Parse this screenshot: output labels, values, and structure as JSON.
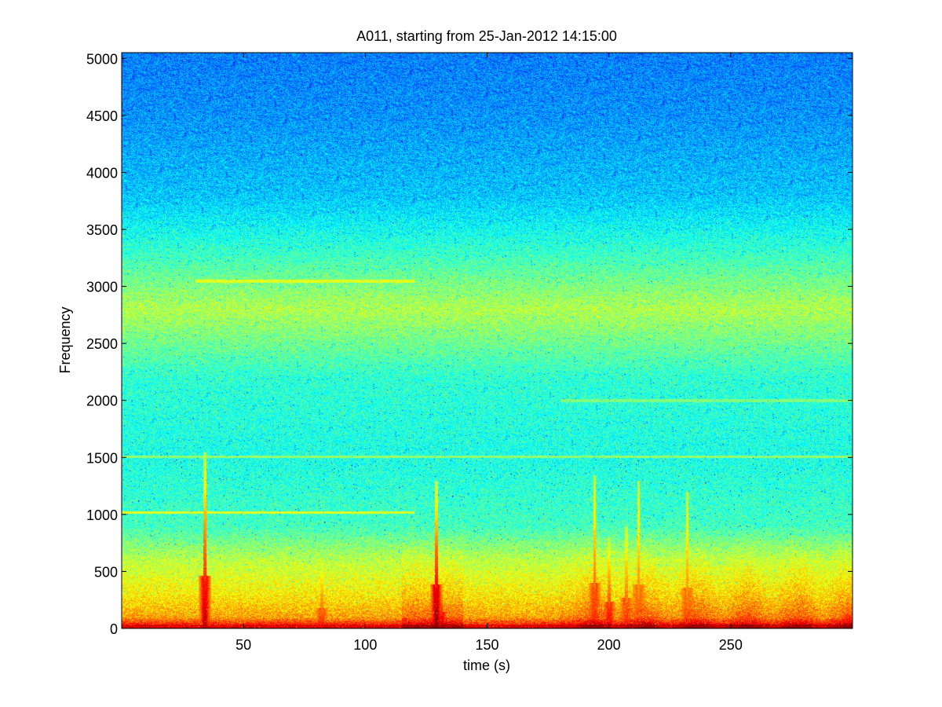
{
  "chart_data": {
    "type": "heatmap",
    "title": "A011, starting from 25-Jan-2012 14:15:00",
    "xlabel": "time (s)",
    "ylabel": "Frequency",
    "xlim": [
      0,
      300
    ],
    "ylim": [
      0,
      5050
    ],
    "x_ticks": [
      50,
      100,
      150,
      200,
      250
    ],
    "y_ticks": [
      0,
      500,
      1000,
      1500,
      2000,
      2500,
      3000,
      3500,
      4000,
      4500,
      5000
    ],
    "colormap": "jet",
    "colors": {
      "low": "#1fd8e6",
      "mid": "#6ef28a",
      "high": "#ffff1a",
      "peak": "#d01010"
    },
    "intensity_profile": [
      {
        "frequency": 0,
        "level": 0.92
      },
      {
        "frequency": 100,
        "level": 0.72
      },
      {
        "frequency": 300,
        "level": 0.64
      },
      {
        "frequency": 600,
        "level": 0.56
      },
      {
        "frequency": 900,
        "level": 0.44
      },
      {
        "frequency": 1500,
        "level": 0.4
      },
      {
        "frequency": 2200,
        "level": 0.42
      },
      {
        "frequency": 2800,
        "level": 0.55
      },
      {
        "frequency": 3300,
        "level": 0.43
      },
      {
        "frequency": 3800,
        "level": 0.32
      },
      {
        "frequency": 4500,
        "level": 0.27
      },
      {
        "frequency": 5050,
        "level": 0.25
      }
    ],
    "tonal_lines": [
      {
        "frequency": 1020,
        "t_start": 0,
        "t_end": 120,
        "level": 0.6
      },
      {
        "frequency": 1510,
        "t_start": 0,
        "t_end": 300,
        "level": 0.52
      },
      {
        "frequency": 2000,
        "t_start": 180,
        "t_end": 300,
        "level": 0.5
      },
      {
        "frequency": 3050,
        "t_start": 30,
        "t_end": 120,
        "level": 0.6
      }
    ],
    "broadband_events": [
      {
        "time": 34,
        "max_frequency": 1550,
        "level": 0.95
      },
      {
        "time": 82,
        "max_frequency": 600,
        "level": 0.85
      },
      {
        "time": 129,
        "max_frequency": 1300,
        "level": 1.0
      },
      {
        "time": 131,
        "max_frequency": 500,
        "level": 0.95
      },
      {
        "time": 194,
        "max_frequency": 1350,
        "level": 0.85
      },
      {
        "time": 200,
        "max_frequency": 800,
        "level": 0.9
      },
      {
        "time": 207,
        "max_frequency": 900,
        "level": 0.85
      },
      {
        "time": 212,
        "max_frequency": 1300,
        "level": 0.8
      },
      {
        "time": 232,
        "max_frequency": 1200,
        "level": 0.8
      },
      {
        "time": 298,
        "max_frequency": 400,
        "level": 0.9
      }
    ]
  }
}
